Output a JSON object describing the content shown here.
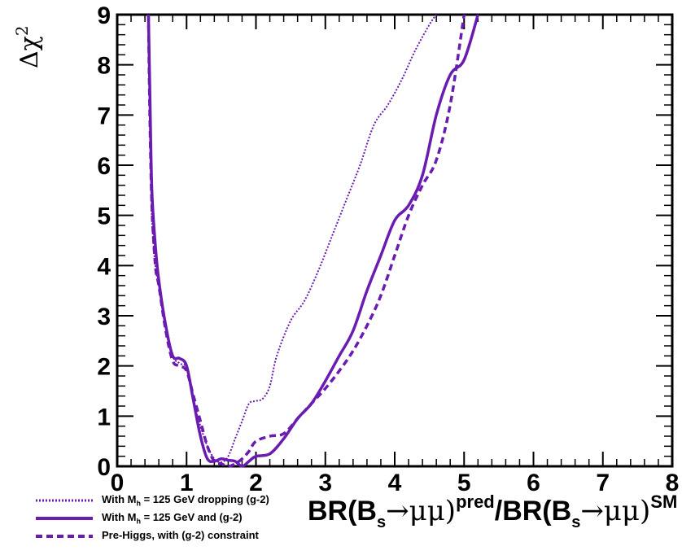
{
  "chart_data": {
    "type": "line",
    "xlabel": "BR(B_s→μμ)^pred/BR(B_s→μμ)^SM",
    "xlabel_parts": {
      "a": "BR(B",
      "s1": "s",
      "b": "→μμ)",
      "sup1": "pred",
      "c": "/BR(B",
      "s2": "s",
      "d": "→μμ)",
      "sup2": "SM"
    },
    "ylabel": "Δχ²",
    "ylabel_parts": {
      "base": "Δχ",
      "sup": "2"
    },
    "xlim": [
      0,
      8
    ],
    "ylim": [
      0,
      9
    ],
    "x_ticks": [
      "0",
      "1",
      "2",
      "3",
      "4",
      "5",
      "6",
      "7",
      "8"
    ],
    "y_ticks": [
      "0",
      "1",
      "2",
      "3",
      "4",
      "5",
      "6",
      "7",
      "8",
      "9"
    ],
    "legend_position": "bottom-left",
    "colors": {
      "series": "#6a1bb0"
    },
    "series": [
      {
        "name": "With M_h = 125 GeV dropping (g-2)",
        "label_parts": {
          "pre": "With M",
          "sub": "h",
          "post": " = 125 GeV dropping (g-2)"
        },
        "style": "dotted",
        "x": [
          0.45,
          0.47,
          0.5,
          0.55,
          0.6,
          0.7,
          0.8,
          0.9,
          1.0,
          1.1,
          1.2,
          1.3,
          1.4,
          1.5,
          1.6,
          1.7,
          1.8,
          1.9,
          2.0,
          2.1,
          2.2,
          2.3,
          2.5,
          2.7,
          2.9,
          3.1,
          3.3,
          3.5,
          3.7,
          3.9,
          4.1,
          4.3,
          4.5,
          4.6
        ],
        "y": [
          9.0,
          7.0,
          5.0,
          4.0,
          3.6,
          2.8,
          2.2,
          2.05,
          1.95,
          1.3,
          0.8,
          0.4,
          0.15,
          0.08,
          0.2,
          0.55,
          0.9,
          1.25,
          1.3,
          1.35,
          1.6,
          2.2,
          2.9,
          3.3,
          3.9,
          4.6,
          5.3,
          6.0,
          6.8,
          7.2,
          7.7,
          8.3,
          8.8,
          9.0
        ]
      },
      {
        "name": "With M_h = 125 GeV and (g-2)",
        "label_parts": {
          "pre": "With M",
          "sub": "h",
          "post": " = 125 GeV and (g-2)"
        },
        "style": "solid",
        "x": [
          0.45,
          0.47,
          0.5,
          0.55,
          0.6,
          0.7,
          0.8,
          0.9,
          1.0,
          1.1,
          1.2,
          1.3,
          1.4,
          1.5,
          1.6,
          1.7,
          1.8,
          1.9,
          2.0,
          2.2,
          2.4,
          2.6,
          2.8,
          3.0,
          3.2,
          3.4,
          3.6,
          3.8,
          4.0,
          4.2,
          4.4,
          4.6,
          4.8,
          5.0,
          5.2
        ],
        "y": [
          9.0,
          7.5,
          5.5,
          4.4,
          3.7,
          2.8,
          2.2,
          2.15,
          2.0,
          1.3,
          0.6,
          0.15,
          0.1,
          0.15,
          0.12,
          0.1,
          0.0,
          0.1,
          0.2,
          0.25,
          0.55,
          0.95,
          1.25,
          1.7,
          2.2,
          2.7,
          3.5,
          4.2,
          4.9,
          5.2,
          5.8,
          7.0,
          7.8,
          8.1,
          9.0
        ]
      },
      {
        "name": "Pre-Higgs, with (g-2) constraint",
        "label_parts": {
          "pre": "Pre-Higgs, with (g-2) constraint",
          "sub": "",
          "post": ""
        },
        "style": "dashed",
        "x": [
          0.45,
          0.47,
          0.5,
          0.55,
          0.6,
          0.7,
          0.8,
          0.9,
          1.0,
          1.1,
          1.2,
          1.3,
          1.4,
          1.5,
          1.6,
          1.7,
          1.8,
          1.9,
          2.0,
          2.2,
          2.4,
          2.6,
          2.8,
          3.0,
          3.2,
          3.4,
          3.6,
          3.8,
          4.0,
          4.2,
          4.4,
          4.6,
          4.8,
          5.0
        ],
        "y": [
          9.0,
          7.0,
          5.2,
          4.0,
          3.6,
          2.7,
          2.1,
          2.0,
          1.9,
          1.4,
          0.9,
          0.4,
          0.1,
          0.05,
          0.0,
          0.05,
          0.15,
          0.3,
          0.5,
          0.6,
          0.65,
          0.95,
          1.25,
          1.55,
          1.9,
          2.3,
          2.8,
          3.4,
          4.2,
          5.0,
          5.6,
          6.1,
          7.2,
          9.0
        ]
      }
    ]
  }
}
